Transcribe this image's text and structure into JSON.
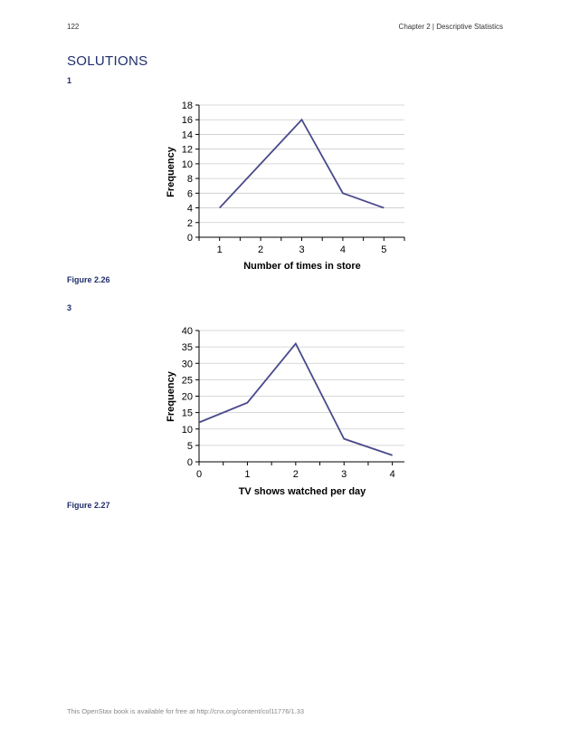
{
  "header": {
    "page_number": "122",
    "running_head": "Chapter 2 | Descriptive Statistics"
  },
  "section_title": "SOLUTIONS",
  "problems": [
    {
      "number": "1",
      "caption": "Figure 2.26"
    },
    {
      "number": "3",
      "caption": "Figure 2.27"
    }
  ],
  "footer": "This OpenStax book is available for free at http://cnx.org/content/col11776/1.33",
  "colors": {
    "line": "#4a4a8c",
    "heading": "#1f2d6b",
    "grid": "#cccccc"
  },
  "chart_data": [
    {
      "type": "line",
      "title": "",
      "xlabel": "Number of times in store",
      "ylabel": "Frequency",
      "x": [
        1,
        2,
        3,
        4,
        5
      ],
      "values": [
        4,
        10,
        16,
        6,
        4
      ],
      "xlim": [
        0.5,
        5.5
      ],
      "ylim": [
        0,
        18
      ],
      "yticks": [
        0,
        2,
        4,
        6,
        8,
        10,
        12,
        14,
        16,
        18
      ],
      "xtick_labels": [
        "1",
        "2",
        "3",
        "4",
        "5"
      ],
      "grid": true
    },
    {
      "type": "line",
      "title": "",
      "xlabel": "TV shows watched per day",
      "ylabel": "Frequency",
      "x": [
        0,
        1,
        2,
        3,
        4
      ],
      "values": [
        12,
        18,
        36,
        7,
        2
      ],
      "xlim": [
        0,
        4.25
      ],
      "ylim": [
        0,
        40
      ],
      "yticks": [
        0,
        5,
        10,
        15,
        20,
        25,
        30,
        35,
        40
      ],
      "xtick_labels": [
        "0",
        "1",
        "2",
        "3",
        "4"
      ],
      "grid": true
    }
  ]
}
